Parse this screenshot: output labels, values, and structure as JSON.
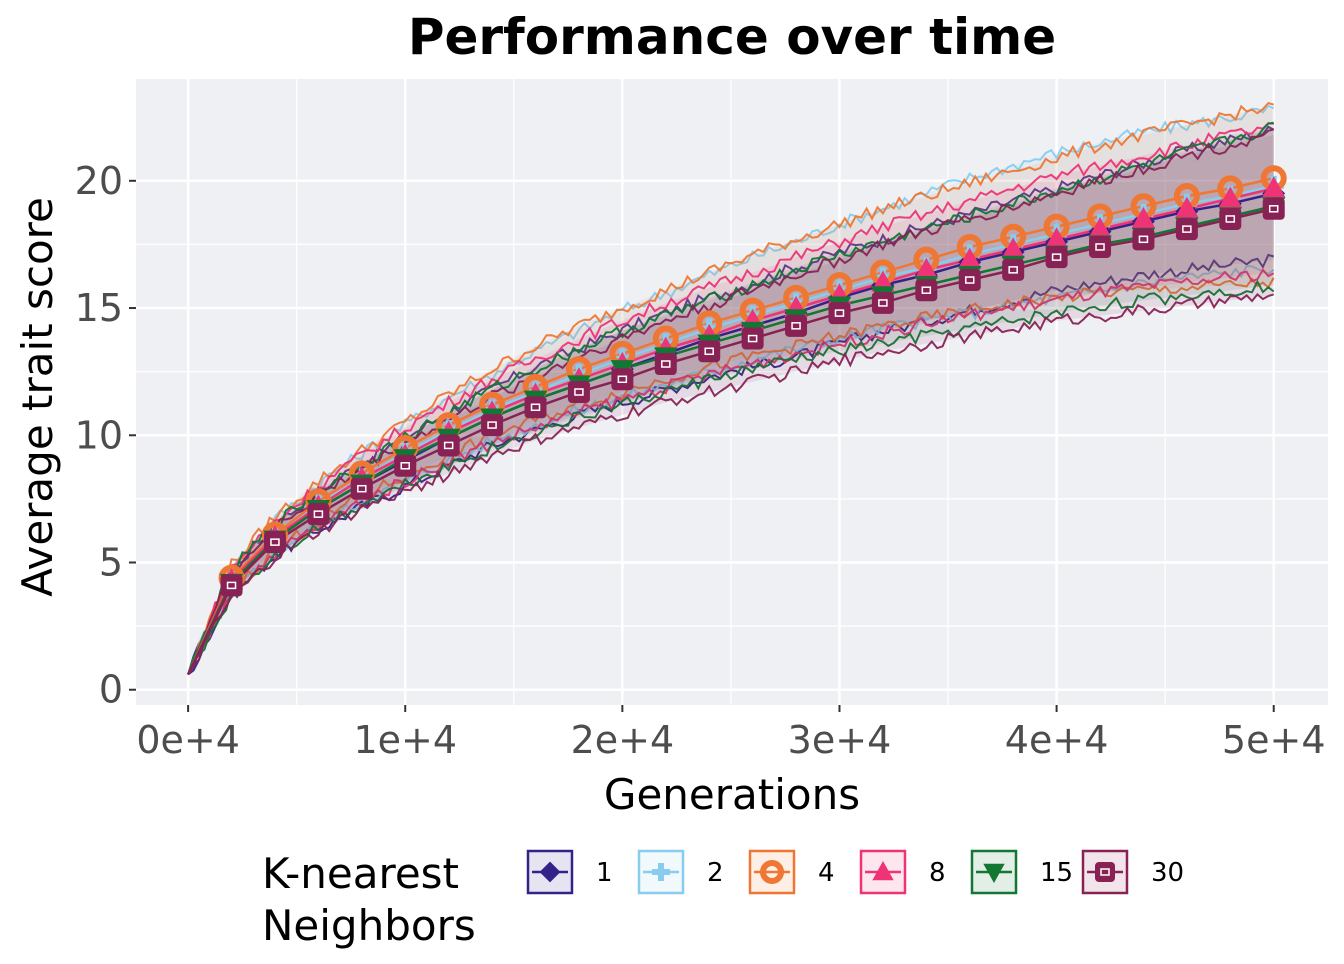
{
  "chart_data": {
    "type": "line",
    "title": "Performance over time",
    "xlabel": "Generations",
    "ylabel": "Average trait score",
    "xlim": [
      -2400,
      52500
    ],
    "ylim": [
      -0.6,
      24
    ],
    "x_ticks": [
      0,
      10000,
      20000,
      30000,
      40000,
      50000
    ],
    "x_tick_labels": [
      "0e+4",
      "1e+4",
      "2e+4",
      "3e+4",
      "4e+4",
      "5e+4"
    ],
    "y_ticks": [
      0,
      5,
      10,
      15,
      20
    ],
    "y_tick_labels": [
      "0",
      "5",
      "10",
      "15",
      "20"
    ],
    "grid": true,
    "legend": {
      "title": "K-nearest Neighbors",
      "position": "bottom"
    },
    "x": [
      0,
      2000,
      4000,
      6000,
      8000,
      10000,
      12000,
      14000,
      16000,
      18000,
      20000,
      22000,
      24000,
      26000,
      28000,
      30000,
      32000,
      34000,
      36000,
      38000,
      40000,
      42000,
      44000,
      46000,
      48000,
      50000
    ],
    "series": [
      {
        "name": "1",
        "color": "#332288",
        "marker": "diamond",
        "values": [
          0.6,
          4.2,
          5.9,
          7.1,
          8.1,
          9.0,
          9.9,
          10.7,
          11.4,
          12.0,
          12.6,
          13.2,
          13.8,
          14.3,
          14.8,
          15.4,
          15.9,
          16.3,
          16.8,
          17.2,
          17.6,
          18.0,
          18.4,
          18.8,
          19.1,
          19.5
        ],
        "lower": [
          0.6,
          3.7,
          5.3,
          6.3,
          7.2,
          8.0,
          8.8,
          9.6,
          10.2,
          10.8,
          11.3,
          11.8,
          12.3,
          12.7,
          13.1,
          13.6,
          14.1,
          14.5,
          14.9,
          15.3,
          15.7,
          16.0,
          16.3,
          16.5,
          16.7,
          16.9
        ],
        "upper": [
          0.6,
          4.7,
          6.5,
          7.8,
          8.9,
          9.9,
          10.9,
          11.8,
          12.7,
          13.4,
          14.1,
          14.8,
          15.4,
          16.0,
          16.6,
          17.2,
          17.7,
          18.2,
          18.7,
          19.2,
          19.7,
          20.2,
          20.7,
          21.2,
          21.6,
          22.0
        ]
      },
      {
        "name": "2",
        "color": "#88CCEE",
        "marker": "plus",
        "values": [
          0.6,
          4.3,
          6.0,
          7.3,
          8.3,
          9.3,
          10.2,
          11.0,
          11.7,
          12.4,
          13.0,
          13.6,
          14.2,
          14.7,
          15.2,
          15.7,
          16.2,
          16.6,
          17.1,
          17.5,
          17.9,
          18.3,
          18.7,
          19.1,
          19.4,
          19.8
        ],
        "lower": [
          0.6,
          3.8,
          5.4,
          6.5,
          7.4,
          8.2,
          9.0,
          9.8,
          10.4,
          11.0,
          11.5,
          12.0,
          12.5,
          13.0,
          13.4,
          13.8,
          14.2,
          14.5,
          14.8,
          15.1,
          15.4,
          15.7,
          16.0,
          16.2,
          16.4,
          16.6
        ],
        "upper": [
          0.6,
          4.8,
          6.7,
          8.1,
          9.3,
          10.4,
          11.5,
          12.4,
          13.3,
          14.1,
          14.9,
          15.6,
          16.3,
          17.0,
          17.6,
          18.3,
          18.9,
          19.5,
          20.1,
          20.6,
          21.1,
          21.5,
          21.9,
          22.2,
          22.5,
          22.8
        ]
      },
      {
        "name": "4",
        "color": "#EE7733",
        "marker": "circle",
        "values": [
          0.6,
          4.4,
          6.1,
          7.4,
          8.5,
          9.5,
          10.4,
          11.2,
          11.9,
          12.6,
          13.2,
          13.8,
          14.4,
          14.9,
          15.4,
          15.9,
          16.4,
          16.9,
          17.4,
          17.8,
          18.2,
          18.6,
          19.0,
          19.4,
          19.7,
          20.1
        ],
        "lower": [
          0.6,
          3.9,
          5.5,
          6.6,
          7.6,
          8.4,
          9.2,
          10.0,
          10.6,
          11.2,
          11.7,
          12.2,
          12.7,
          13.1,
          13.5,
          13.9,
          14.3,
          14.6,
          14.9,
          15.2,
          15.4,
          15.6,
          15.7,
          15.8,
          15.9,
          16.0
        ],
        "upper": [
          0.6,
          4.9,
          6.8,
          8.2,
          9.4,
          10.5,
          11.6,
          12.6,
          13.5,
          14.3,
          15.0,
          15.7,
          16.4,
          17.1,
          17.7,
          18.3,
          18.9,
          19.4,
          19.9,
          20.4,
          20.9,
          21.4,
          21.8,
          22.2,
          22.6,
          22.9
        ]
      },
      {
        "name": "8",
        "color": "#EE3377",
        "marker": "triangle",
        "values": [
          0.6,
          4.3,
          6.0,
          7.2,
          8.3,
          9.2,
          10.1,
          10.9,
          11.6,
          12.2,
          12.8,
          13.4,
          13.9,
          14.5,
          15.0,
          15.5,
          16.0,
          16.5,
          16.9,
          17.3,
          17.7,
          18.1,
          18.5,
          18.9,
          19.3,
          19.7
        ],
        "lower": [
          0.6,
          3.8,
          5.4,
          6.4,
          7.4,
          8.2,
          9.0,
          9.7,
          10.3,
          10.9,
          11.4,
          11.9,
          12.4,
          12.8,
          13.2,
          13.6,
          14.0,
          14.4,
          14.7,
          15.0,
          15.3,
          15.6,
          15.8,
          16.0,
          16.2,
          16.4
        ],
        "upper": [
          0.6,
          4.8,
          6.6,
          8.0,
          9.2,
          10.3,
          11.3,
          12.2,
          13.0,
          13.8,
          14.5,
          15.2,
          15.8,
          16.4,
          17.0,
          17.6,
          18.2,
          18.7,
          19.2,
          19.7,
          20.2,
          20.6,
          21.0,
          21.4,
          21.8,
          22.1
        ]
      },
      {
        "name": "15",
        "color": "#117733",
        "marker": "triangle-down",
        "values": [
          0.6,
          4.2,
          5.9,
          7.1,
          8.1,
          9.1,
          9.9,
          10.7,
          11.4,
          12.0,
          12.6,
          13.1,
          13.6,
          14.1,
          14.6,
          15.1,
          15.5,
          15.9,
          16.3,
          16.7,
          17.1,
          17.5,
          17.8,
          18.2,
          18.6,
          19.0
        ],
        "lower": [
          0.6,
          3.7,
          5.3,
          6.4,
          7.3,
          8.1,
          8.8,
          9.5,
          10.1,
          10.7,
          11.2,
          11.7,
          12.2,
          12.6,
          13.0,
          13.3,
          13.6,
          13.9,
          14.2,
          14.5,
          14.8,
          15.1,
          15.3,
          15.5,
          15.7,
          15.9
        ],
        "upper": [
          0.6,
          4.7,
          6.5,
          7.8,
          8.9,
          9.9,
          10.9,
          11.8,
          12.6,
          13.4,
          14.1,
          14.7,
          15.3,
          15.9,
          16.5,
          17.1,
          17.6,
          18.1,
          18.6,
          19.1,
          19.6,
          20.1,
          20.6,
          21.1,
          21.6,
          22.1
        ]
      },
      {
        "name": "30",
        "color": "#882255",
        "marker": "square",
        "values": [
          0.6,
          4.1,
          5.8,
          6.9,
          7.9,
          8.8,
          9.6,
          10.4,
          11.1,
          11.7,
          12.2,
          12.8,
          13.3,
          13.8,
          14.3,
          14.8,
          15.2,
          15.7,
          16.1,
          16.5,
          17.0,
          17.4,
          17.7,
          18.1,
          18.5,
          18.9
        ],
        "lower": [
          0.6,
          3.6,
          5.2,
          6.2,
          7.1,
          7.8,
          8.5,
          9.2,
          9.8,
          10.3,
          10.8,
          11.3,
          11.7,
          12.1,
          12.5,
          12.9,
          13.3,
          13.6,
          13.9,
          14.2,
          14.5,
          14.7,
          14.9,
          15.1,
          15.3,
          15.5
        ],
        "upper": [
          0.6,
          4.6,
          6.4,
          7.6,
          8.7,
          9.7,
          10.6,
          11.5,
          12.3,
          13.1,
          13.8,
          14.5,
          15.1,
          15.7,
          16.3,
          16.9,
          17.5,
          18.0,
          18.5,
          19.0,
          19.5,
          20.0,
          20.5,
          21.0,
          21.4,
          21.8
        ]
      }
    ]
  }
}
